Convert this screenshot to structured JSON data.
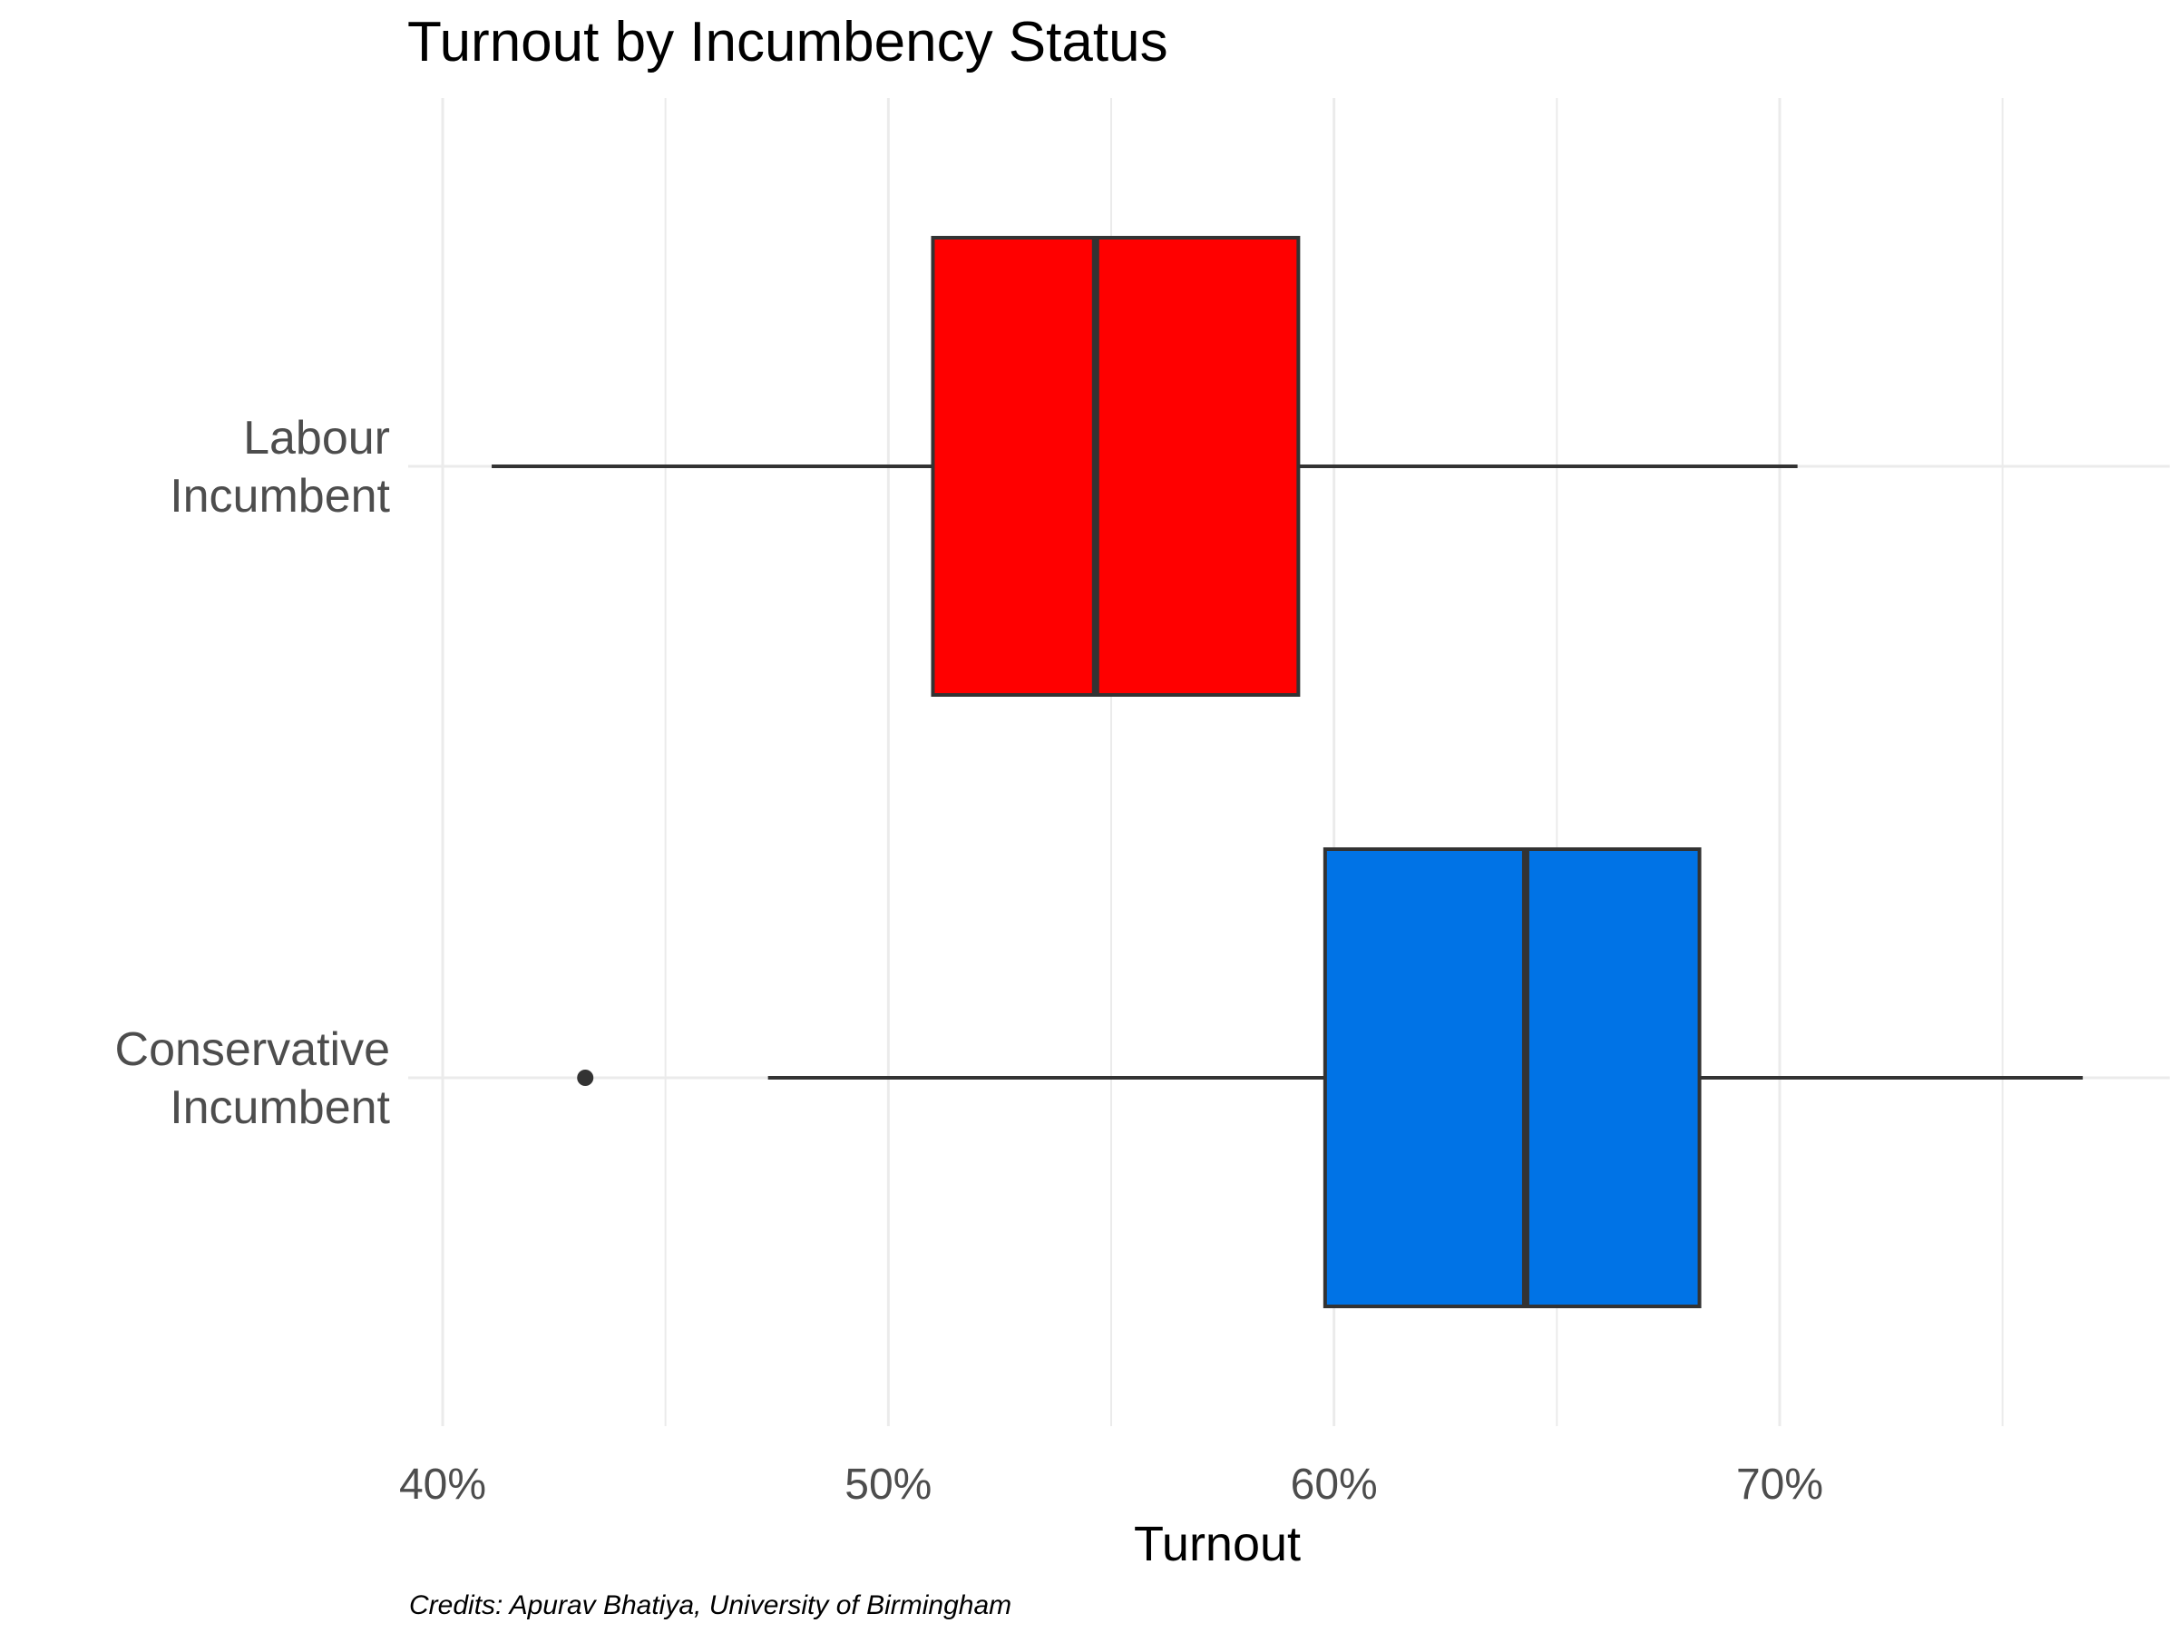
{
  "chart_data": {
    "type": "boxplot",
    "orientation": "horizontal",
    "title": "Turnout by Incumbency Status",
    "xlabel": "Turnout",
    "ylabel": "",
    "xlim": [
      0.4,
      0.78
    ],
    "x_ticks": [
      {
        "value": 0.4,
        "label": "40%"
      },
      {
        "value": 0.5,
        "label": "50%"
      },
      {
        "value": 0.6,
        "label": "60%"
      },
      {
        "value": 0.7,
        "label": "70%"
      }
    ],
    "x_minor_gridlines": [
      0.45,
      0.55,
      0.65,
      0.75
    ],
    "grid": true,
    "legend": "none",
    "categories": [
      {
        "label_lines": [
          "Labour",
          "Incumbent"
        ],
        "color": "#ff0000",
        "whisker_low": 0.411,
        "q1": 0.51,
        "median": 0.5465,
        "q3": 0.592,
        "whisker_high": 0.704,
        "outliers": []
      },
      {
        "label_lines": [
          "Conservative",
          "Incumbent"
        ],
        "color": "#0073e6",
        "whisker_low": 0.473,
        "q1": 0.598,
        "median": 0.643,
        "q3": 0.682,
        "whisker_high": 0.768,
        "outliers": [
          0.432
        ]
      }
    ],
    "box_outline_color": "#333333",
    "caption": "Credits: Apurav Bhatiya, University of Birmingham"
  }
}
